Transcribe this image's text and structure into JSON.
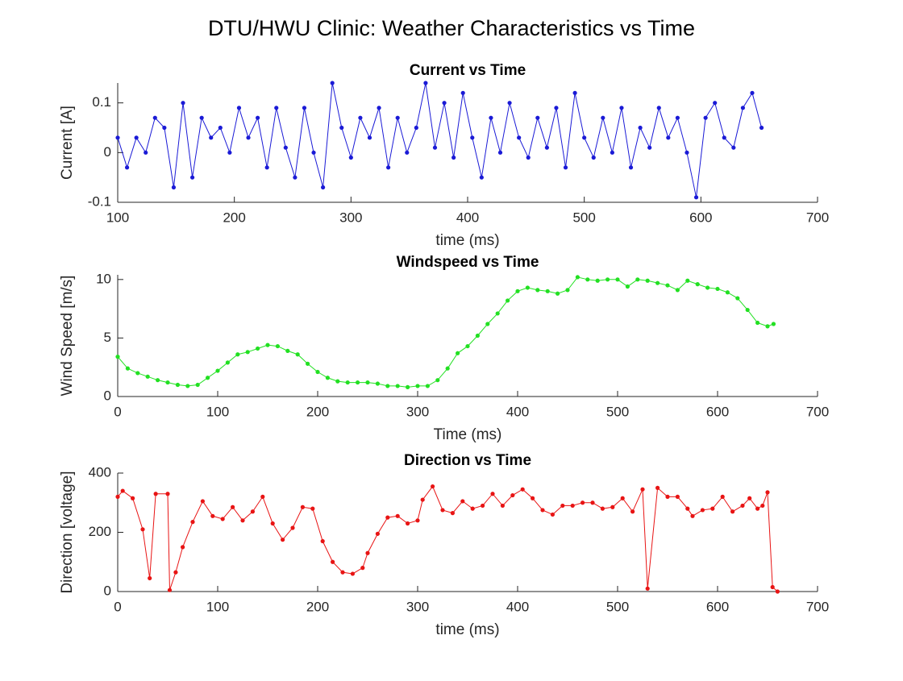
{
  "title": "DTU/HWU Clinic: Weather Characteristics vs Time",
  "chart_data": [
    {
      "type": "line",
      "title": "Current vs Time",
      "xlabel": "time (ms)",
      "ylabel": "Current [A]",
      "color": "#1a1ad6",
      "marker": true,
      "xlim": [
        100,
        700
      ],
      "xticks": [
        100,
        200,
        300,
        400,
        500,
        600,
        700
      ],
      "ylim": [
        -0.1,
        0.14
      ],
      "yticks": [
        -0.1,
        0,
        0.1
      ],
      "x": [
        100,
        108,
        116,
        124,
        132,
        140,
        148,
        156,
        164,
        172,
        180,
        188,
        196,
        204,
        212,
        220,
        228,
        236,
        244,
        252,
        260,
        268,
        276,
        284,
        292,
        300,
        308,
        316,
        324,
        332,
        340,
        348,
        356,
        364,
        372,
        380,
        388,
        396,
        404,
        412,
        420,
        428,
        436,
        444,
        452,
        460,
        468,
        476,
        484,
        492,
        500,
        508,
        516,
        524,
        532,
        540,
        548,
        556,
        564,
        572,
        580,
        588,
        596,
        604,
        612,
        620,
        628,
        636,
        644,
        652
      ],
      "values": [
        0.03,
        -0.03,
        0.03,
        0,
        0.07,
        0.05,
        -0.07,
        0.1,
        -0.05,
        0.07,
        0.03,
        0.05,
        0,
        0.09,
        0.03,
        0.07,
        -0.03,
        0.09,
        0.01,
        -0.05,
        0.09,
        0,
        -0.07,
        0.14,
        0.05,
        -0.01,
        0.07,
        0.03,
        0.09,
        -0.03,
        0.07,
        0,
        0.05,
        0.14,
        0.01,
        0.1,
        -0.01,
        0.12,
        0.03,
        -0.05,
        0.07,
        0,
        0.1,
        0.03,
        -0.01,
        0.07,
        0.01,
        0.09,
        -0.03,
        0.12,
        0.03,
        -0.01,
        0.07,
        0,
        0.09,
        -0.03,
        0.05,
        0.01,
        0.09,
        0.03,
        0.07,
        0,
        -0.09,
        0.07,
        0.1,
        0.03,
        0.01,
        0.09,
        0.12,
        0.05
      ]
    },
    {
      "type": "line",
      "title": "Windspeed vs Time",
      "xlabel": "Time (ms)",
      "ylabel": "Wind Speed [m/s]",
      "color": "#22e022",
      "marker": true,
      "xlim": [
        0,
        700
      ],
      "xticks": [
        0,
        100,
        200,
        300,
        400,
        500,
        600,
        700
      ],
      "ylim": [
        0,
        10.4
      ],
      "yticks": [
        0,
        5,
        10
      ],
      "x": [
        0,
        10,
        20,
        30,
        40,
        50,
        60,
        70,
        80,
        90,
        100,
        110,
        120,
        130,
        140,
        150,
        160,
        170,
        180,
        190,
        200,
        210,
        220,
        230,
        240,
        250,
        260,
        270,
        280,
        290,
        300,
        310,
        320,
        330,
        340,
        350,
        360,
        370,
        380,
        390,
        400,
        410,
        420,
        430,
        440,
        450,
        460,
        470,
        480,
        490,
        500,
        510,
        520,
        530,
        540,
        550,
        560,
        570,
        580,
        590,
        600,
        610,
        620,
        630,
        640,
        650,
        656
      ],
      "values": [
        3.4,
        2.4,
        2.0,
        1.7,
        1.4,
        1.2,
        1.0,
        0.9,
        1.0,
        1.6,
        2.2,
        2.9,
        3.6,
        3.8,
        4.1,
        4.4,
        4.3,
        3.9,
        3.6,
        2.8,
        2.1,
        1.6,
        1.3,
        1.2,
        1.2,
        1.2,
        1.1,
        0.9,
        0.9,
        0.8,
        0.9,
        0.9,
        1.4,
        2.4,
        3.7,
        4.3,
        5.2,
        6.2,
        7.1,
        8.2,
        9.0,
        9.3,
        9.1,
        9.0,
        8.8,
        9.1,
        10.2,
        10.0,
        9.9,
        10.0,
        10.0,
        9.4,
        10.0,
        9.9,
        9.7,
        9.5,
        9.1,
        9.9,
        9.6,
        9.3,
        9.2,
        8.9,
        8.4,
        7.4,
        6.3,
        6.0,
        6.2
      ]
    },
    {
      "type": "line",
      "title": "Direction vs Time",
      "xlabel": "time (ms)",
      "ylabel": "Direction [voltage]",
      "color": "#e81414",
      "marker": true,
      "xlim": [
        0,
        700
      ],
      "xticks": [
        0,
        100,
        200,
        300,
        400,
        500,
        600,
        700
      ],
      "ylim": [
        0,
        400
      ],
      "yticks": [
        0,
        200,
        400
      ],
      "x": [
        0,
        5,
        15,
        25,
        32,
        38,
        50,
        52,
        58,
        65,
        75,
        85,
        95,
        105,
        115,
        125,
        135,
        145,
        155,
        165,
        175,
        185,
        195,
        205,
        215,
        225,
        235,
        245,
        250,
        260,
        270,
        280,
        290,
        300,
        305,
        315,
        325,
        335,
        345,
        355,
        365,
        375,
        385,
        395,
        405,
        415,
        425,
        435,
        445,
        455,
        465,
        475,
        485,
        495,
        505,
        515,
        525,
        530,
        540,
        550,
        560,
        570,
        575,
        585,
        595,
        605,
        615,
        625,
        632,
        640,
        645,
        650,
        655,
        660
      ],
      "values": [
        320,
        340,
        315,
        210,
        45,
        330,
        330,
        5,
        65,
        150,
        235,
        305,
        255,
        245,
        285,
        240,
        270,
        320,
        230,
        175,
        215,
        285,
        280,
        170,
        100,
        65,
        60,
        80,
        130,
        195,
        250,
        255,
        230,
        240,
        310,
        355,
        275,
        265,
        305,
        280,
        290,
        330,
        290,
        325,
        345,
        315,
        275,
        260,
        290,
        290,
        300,
        300,
        280,
        285,
        315,
        270,
        345,
        10,
        350,
        320,
        320,
        280,
        255,
        275,
        280,
        320,
        270,
        290,
        315,
        280,
        290,
        335,
        15,
        0
      ]
    }
  ]
}
